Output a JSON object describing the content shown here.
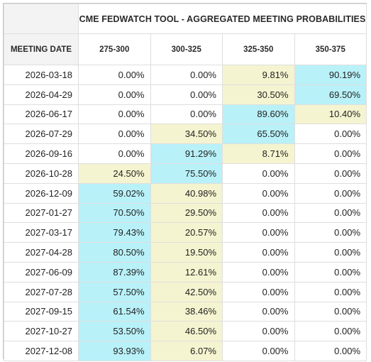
{
  "title": "CME FEDWATCH TOOL - AGGREGATED MEETING PROBABILITIES",
  "date_header": "MEETING DATE",
  "columns": [
    "275-300",
    "300-325",
    "325-350",
    "350-375"
  ],
  "colors": {
    "blue_highlight": "#b9f1f9",
    "yellow_highlight": "#f5f4d0",
    "header_gray": "#f3f3f3",
    "border": "#dedede"
  },
  "rows": [
    {
      "date": "2026-03-18",
      "values": [
        "0.00%",
        "0.00%",
        "9.81%",
        "90.19%"
      ],
      "highlight": [
        "none",
        "none",
        "yellow",
        "blue"
      ]
    },
    {
      "date": "2026-04-29",
      "values": [
        "0.00%",
        "0.00%",
        "30.50%",
        "69.50%"
      ],
      "highlight": [
        "none",
        "none",
        "yellow",
        "blue"
      ]
    },
    {
      "date": "2026-06-17",
      "values": [
        "0.00%",
        "0.00%",
        "89.60%",
        "10.40%"
      ],
      "highlight": [
        "none",
        "none",
        "blue",
        "yellow"
      ]
    },
    {
      "date": "2026-07-29",
      "values": [
        "0.00%",
        "34.50%",
        "65.50%",
        "0.00%"
      ],
      "highlight": [
        "none",
        "yellow",
        "blue",
        "none"
      ]
    },
    {
      "date": "2026-09-16",
      "values": [
        "0.00%",
        "91.29%",
        "8.71%",
        "0.00%"
      ],
      "highlight": [
        "none",
        "blue",
        "yellow",
        "none"
      ]
    },
    {
      "date": "2026-10-28",
      "values": [
        "24.50%",
        "75.50%",
        "0.00%",
        "0.00%"
      ],
      "highlight": [
        "yellow",
        "blue",
        "none",
        "none"
      ]
    },
    {
      "date": "2026-12-09",
      "values": [
        "59.02%",
        "40.98%",
        "0.00%",
        "0.00%"
      ],
      "highlight": [
        "blue",
        "yellow",
        "none",
        "none"
      ]
    },
    {
      "date": "2027-01-27",
      "values": [
        "70.50%",
        "29.50%",
        "0.00%",
        "0.00%"
      ],
      "highlight": [
        "blue",
        "yellow",
        "none",
        "none"
      ]
    },
    {
      "date": "2027-03-17",
      "values": [
        "79.43%",
        "20.57%",
        "0.00%",
        "0.00%"
      ],
      "highlight": [
        "blue",
        "yellow",
        "none",
        "none"
      ]
    },
    {
      "date": "2027-04-28",
      "values": [
        "80.50%",
        "19.50%",
        "0.00%",
        "0.00%"
      ],
      "highlight": [
        "blue",
        "yellow",
        "none",
        "none"
      ]
    },
    {
      "date": "2027-06-09",
      "values": [
        "87.39%",
        "12.61%",
        "0.00%",
        "0.00%"
      ],
      "highlight": [
        "blue",
        "yellow",
        "none",
        "none"
      ]
    },
    {
      "date": "2027-07-28",
      "values": [
        "57.50%",
        "42.50%",
        "0.00%",
        "0.00%"
      ],
      "highlight": [
        "blue",
        "yellow",
        "none",
        "none"
      ]
    },
    {
      "date": "2027-09-15",
      "values": [
        "61.54%",
        "38.46%",
        "0.00%",
        "0.00%"
      ],
      "highlight": [
        "blue",
        "yellow",
        "none",
        "none"
      ]
    },
    {
      "date": "2027-10-27",
      "values": [
        "53.50%",
        "46.50%",
        "0.00%",
        "0.00%"
      ],
      "highlight": [
        "blue",
        "yellow",
        "none",
        "none"
      ]
    },
    {
      "date": "2027-12-08",
      "values": [
        "93.93%",
        "6.07%",
        "0.00%",
        "0.00%"
      ],
      "highlight": [
        "blue",
        "yellow",
        "none",
        "none"
      ]
    }
  ]
}
